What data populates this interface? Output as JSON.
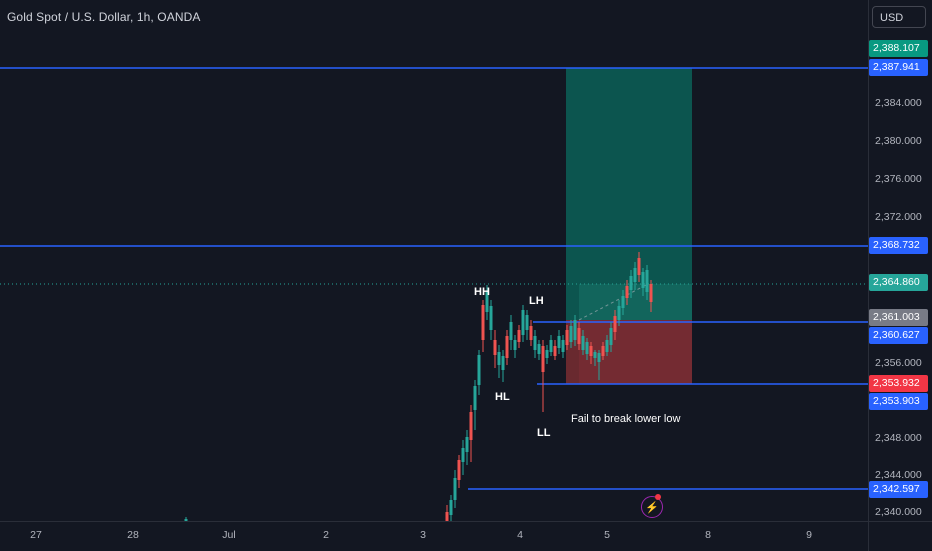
{
  "header": {
    "symbol_title": "Gold Spot / U.S. Dollar, 1h, OANDA"
  },
  "currency_button": "USD",
  "price_axis": {
    "ticks": [
      "2,384.000",
      "2,380.000",
      "2,376.000",
      "2,372.000",
      "2,356.000",
      "2,348.000",
      "2,344.000",
      "2,340.000"
    ]
  },
  "price_badges": {
    "target": "2,388.107",
    "line_top": "2,387.941",
    "line_mid": "2,368.732",
    "last_price": "2,364.860",
    "entry": "2,361.003",
    "line_entry": "2,360.627",
    "stop": "2,353.932",
    "line_stop": "2,353.903",
    "line_bottom": "2,342.597"
  },
  "time_axis": {
    "labels": [
      "27",
      "28",
      "Jul",
      "2",
      "3",
      "4",
      "5",
      "8",
      "9"
    ]
  },
  "annotations": {
    "hh": "HH",
    "lh": "LH",
    "hl": "HL",
    "ll": "LL",
    "note": "Fail to break lower low"
  },
  "colors": {
    "background": "#131722",
    "up": "#26a69a",
    "down": "#ef5350",
    "line": "#2962ff",
    "profit_zone": "#0b5e55",
    "loss_zone": "#7d2a2e"
  },
  "icons": {
    "alert": "lightning-bolt-icon"
  }
}
